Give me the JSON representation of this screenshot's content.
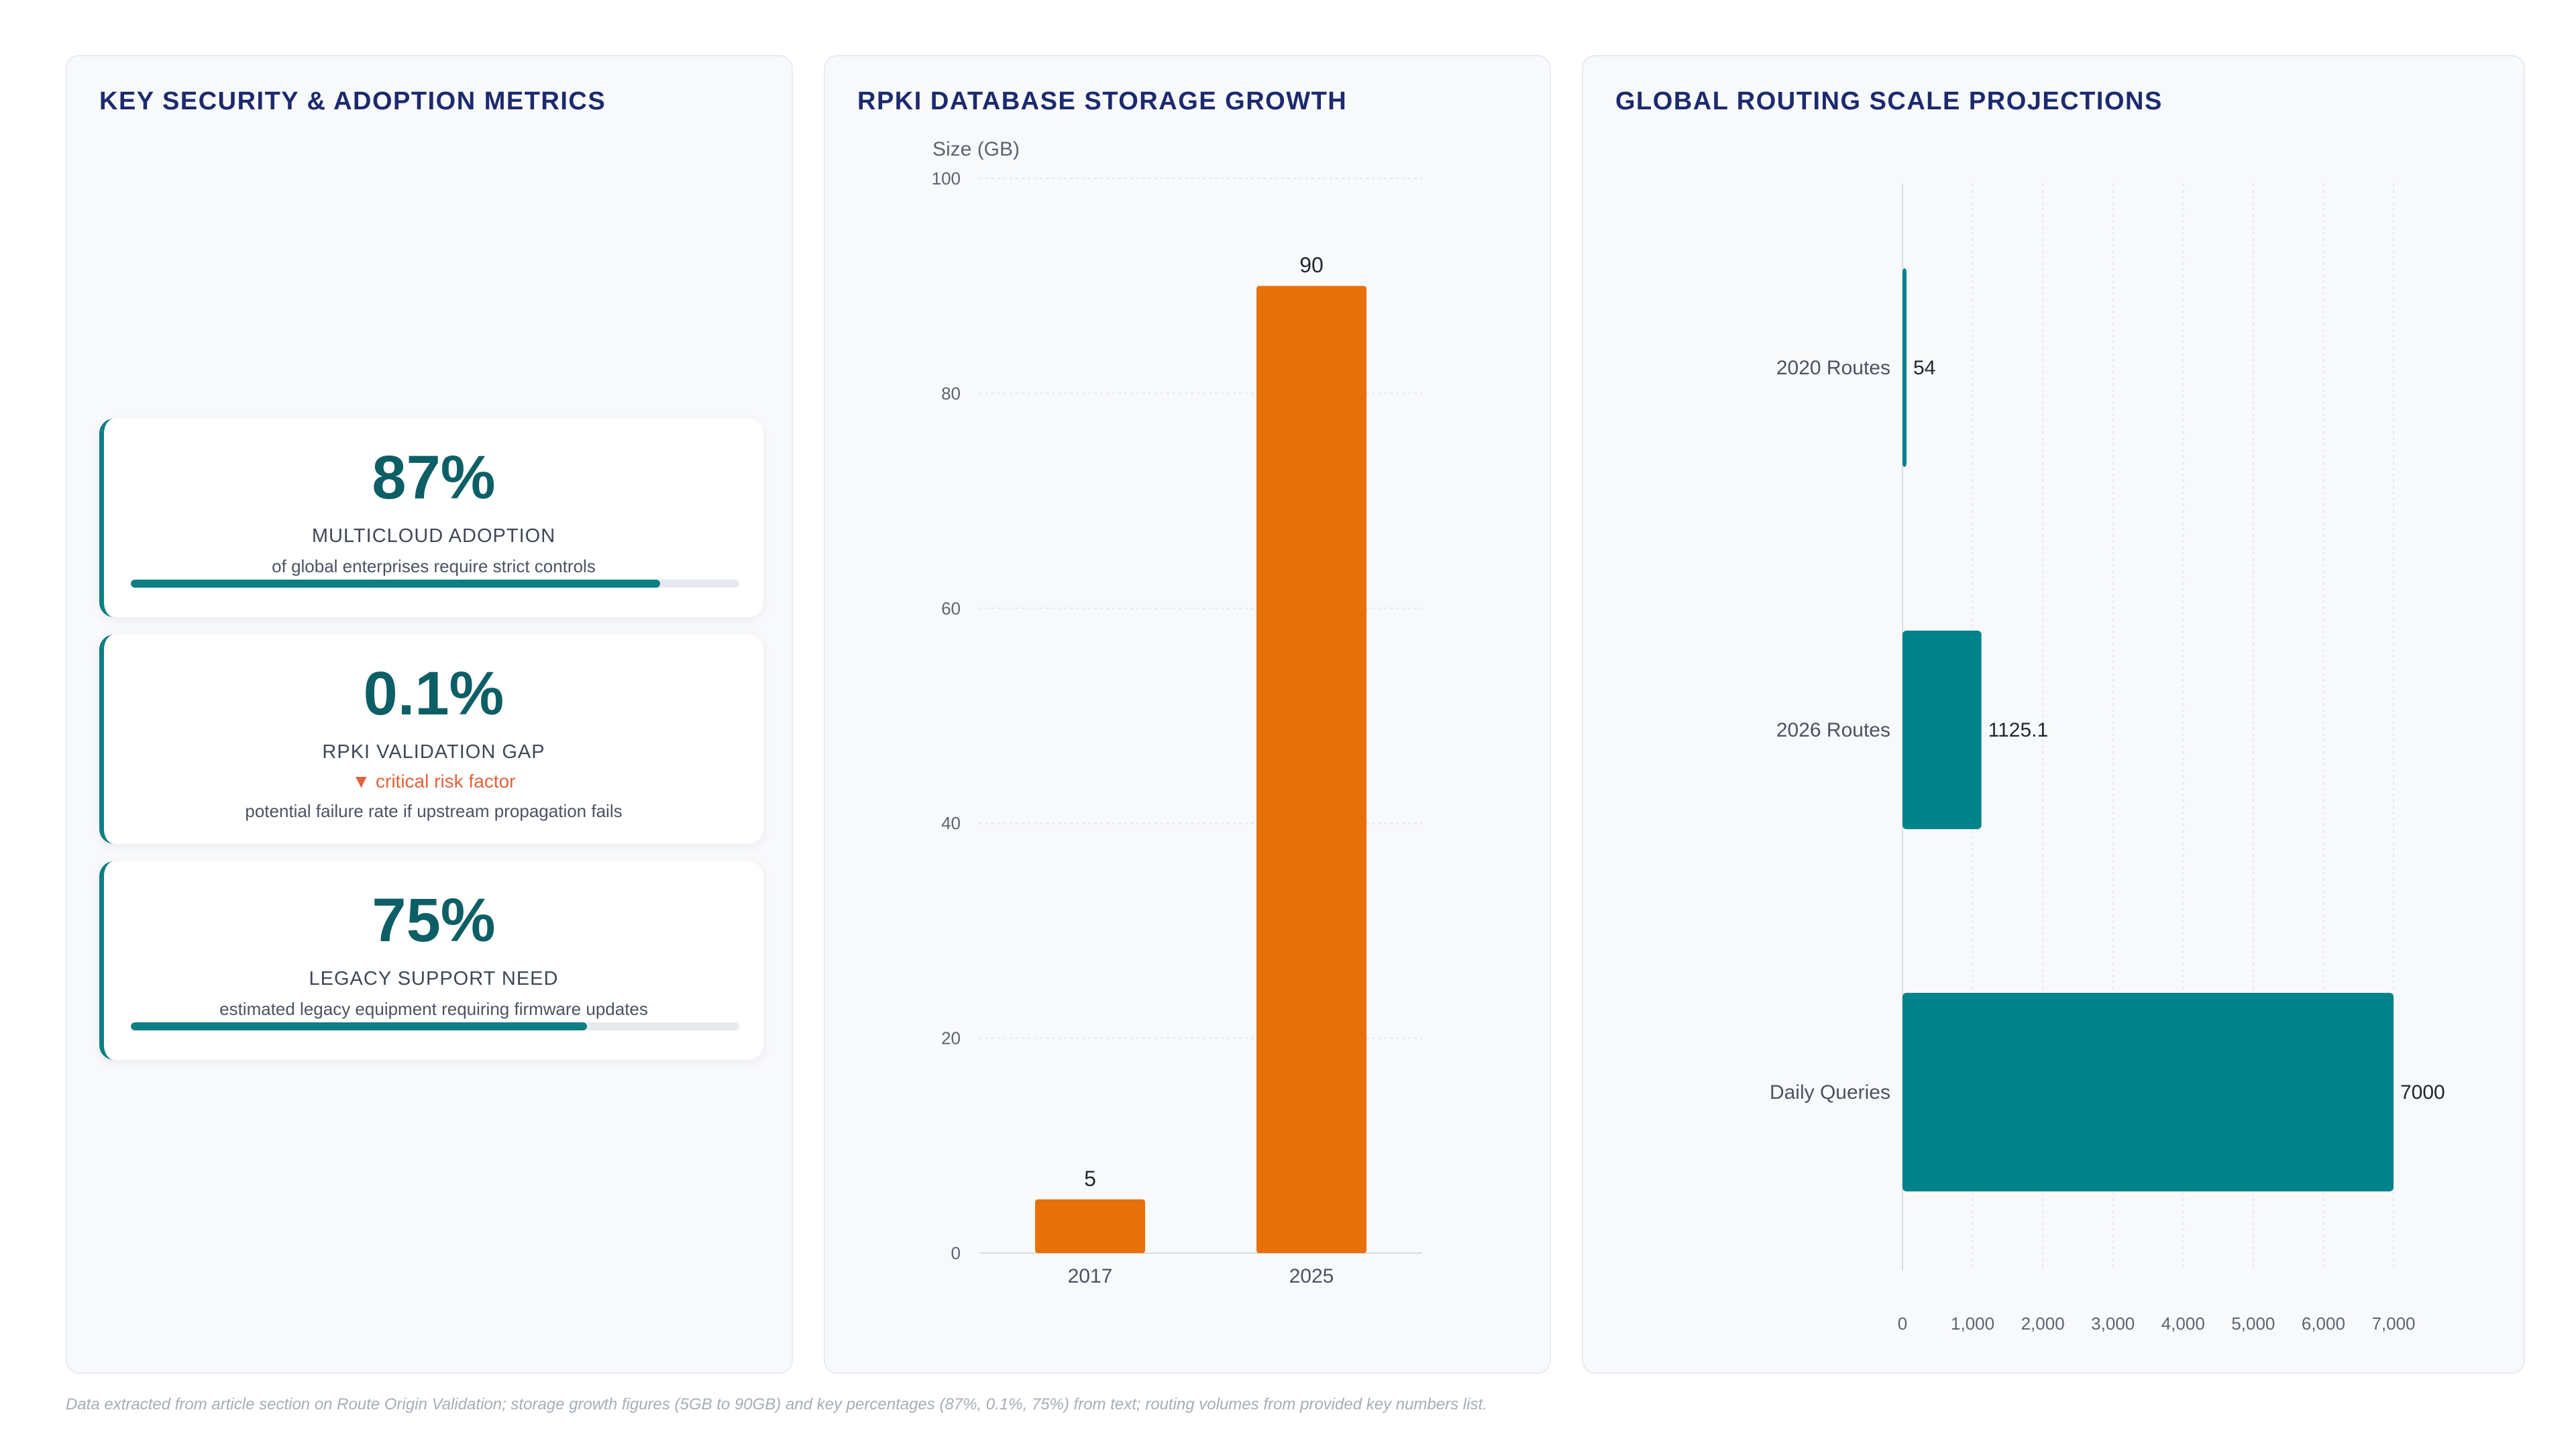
{
  "metrics_panel": {
    "title": "KEY SECURITY & ADOPTION METRICS",
    "cards": [
      {
        "value": "87%",
        "label": "MULTICLOUD ADOPTION",
        "description": "of global enterprises require strict controls",
        "progress": 0.87
      },
      {
        "value": "0.1%",
        "label": "RPKI VALIDATION GAP",
        "flag": "▼ critical risk factor",
        "description": "potential failure rate if upstream propagation fails"
      },
      {
        "value": "75%",
        "label": "LEGACY SUPPORT NEED",
        "description": "estimated legacy equipment requiring firmware updates",
        "progress": 0.75
      }
    ]
  },
  "chart_data": [
    {
      "type": "bar",
      "title": "RPKI DATABASE STORAGE GROWTH",
      "ylabel": "Size (GB)",
      "categories": [
        "2017",
        "2025"
      ],
      "values": [
        5,
        90
      ],
      "data_labels": [
        "5",
        "90"
      ],
      "ylim": [
        0,
        100
      ],
      "yticks": [
        0,
        20,
        40,
        60,
        80,
        100
      ],
      "grid": true,
      "color": "#e8700a"
    },
    {
      "type": "bar",
      "orientation": "horizontal",
      "title": "GLOBAL ROUTING SCALE PROJECTIONS",
      "categories": [
        "2020 Routes",
        "2026 Routes",
        "Daily Queries"
      ],
      "values": [
        54,
        1125.1,
        7000
      ],
      "data_labels": [
        "54",
        "1125.1",
        "7000"
      ],
      "xlim": [
        0,
        7000
      ],
      "xticks": [
        "0",
        "1,000",
        "2,000",
        "3,000",
        "4,000",
        "5,000",
        "6,000",
        "7,000"
      ],
      "grid": true,
      "color": "#00838a"
    }
  ],
  "footnote": "Data extracted from article section on Route Origin Validation; storage growth figures (5GB to 90GB) and key percentages (87%, 0.1%, 75%) from text; routing volumes from provided key numbers list."
}
